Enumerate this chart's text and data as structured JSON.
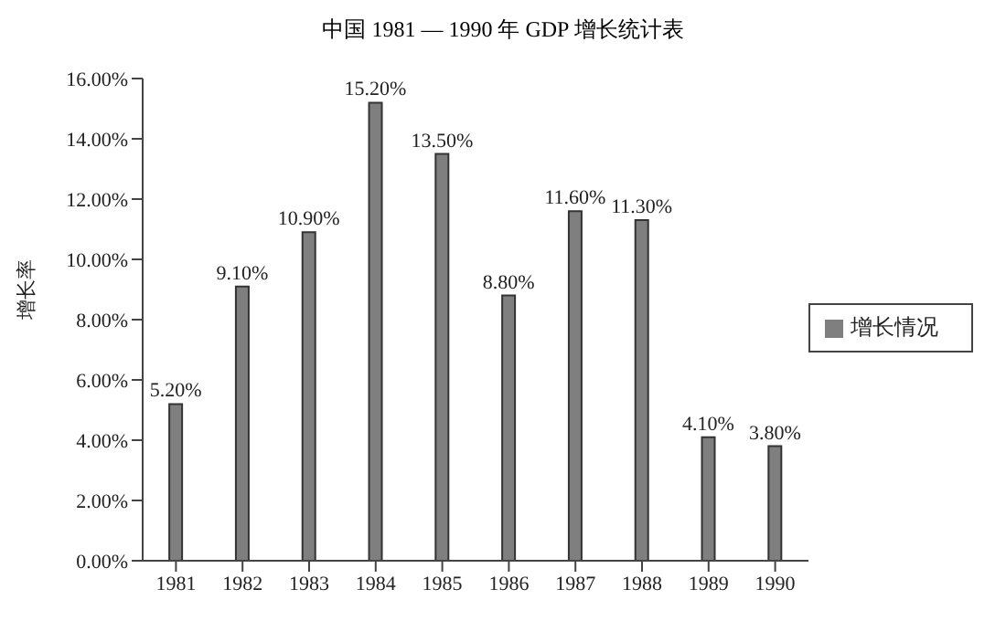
{
  "chart_data": {
    "type": "bar",
    "title": "中国 1981 — 1990 年 GDP 增长统计表",
    "ylabel": "增长率",
    "categories": [
      "1981",
      "1982",
      "1983",
      "1984",
      "1985",
      "1986",
      "1987",
      "1988",
      "1989",
      "1990"
    ],
    "series": [
      {
        "name": "增长情况",
        "color": "#7f7f7f",
        "values": [
          5.2,
          9.1,
          10.9,
          15.2,
          13.5,
          8.8,
          11.6,
          11.3,
          4.1,
          3.8
        ],
        "value_labels": [
          "5.20%",
          "9.10%",
          "10.90%",
          "15.20%",
          "13.50%",
          "8.80%",
          "11.60%",
          "11.30%",
          "4.10%",
          "3.80%"
        ]
      }
    ],
    "ylim": [
      0,
      16
    ],
    "yticks": [
      {
        "value": 0,
        "label": "0.00%"
      },
      {
        "value": 2,
        "label": "2.00%"
      },
      {
        "value": 4,
        "label": "4.00%"
      },
      {
        "value": 6,
        "label": "6.00%"
      },
      {
        "value": 8,
        "label": "8.00%"
      },
      {
        "value": 10,
        "label": "10.00%"
      },
      {
        "value": 12,
        "label": "12.00%"
      },
      {
        "value": 14,
        "label": "14.00%"
      },
      {
        "value": 16,
        "label": "16.00%"
      }
    ],
    "grid": false,
    "legend": "right"
  }
}
